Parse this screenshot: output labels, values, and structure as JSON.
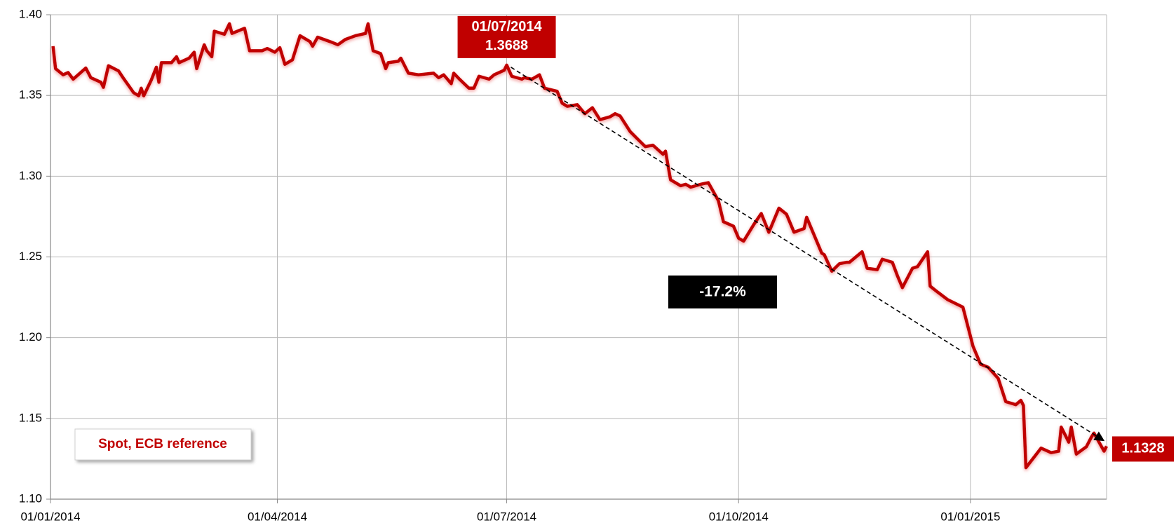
{
  "chart_data": {
    "type": "line",
    "x": [
      "2014-01-02",
      "2014-01-03",
      "2014-01-06",
      "2014-01-08",
      "2014-01-10",
      "2014-01-15",
      "2014-01-17",
      "2014-01-21",
      "2014-01-22",
      "2014-01-24",
      "2014-01-28",
      "2014-01-30",
      "2014-02-03",
      "2014-02-05",
      "2014-02-06",
      "2014-02-07",
      "2014-02-10",
      "2014-02-12",
      "2014-02-13",
      "2014-02-14",
      "2014-02-18",
      "2014-02-20",
      "2014-02-21",
      "2014-02-25",
      "2014-02-27",
      "2014-02-28",
      "2014-03-03",
      "2014-03-04",
      "2014-03-06",
      "2014-03-07",
      "2014-03-11",
      "2014-03-13",
      "2014-03-14",
      "2014-03-19",
      "2014-03-21",
      "2014-03-26",
      "2014-03-28",
      "2014-03-31",
      "2014-04-02",
      "2014-04-04",
      "2014-04-07",
      "2014-04-10",
      "2014-04-14",
      "2014-04-15",
      "2014-04-17",
      "2014-04-22",
      "2014-04-25",
      "2014-04-28",
      "2014-05-02",
      "2014-05-06",
      "2014-05-07",
      "2014-05-09",
      "2014-05-12",
      "2014-05-14",
      "2014-05-15",
      "2014-05-19",
      "2014-05-20",
      "2014-05-23",
      "2014-05-27",
      "2014-06-02",
      "2014-06-04",
      "2014-06-06",
      "2014-06-09",
      "2014-06-10",
      "2014-06-12",
      "2014-06-16",
      "2014-06-18",
      "2014-06-20",
      "2014-06-24",
      "2014-06-26",
      "2014-06-30",
      "2014-07-01",
      "2014-07-03",
      "2014-07-07",
      "2014-07-08",
      "2014-07-11",
      "2014-07-14",
      "2014-07-16",
      "2014-07-21",
      "2014-07-23",
      "2014-07-25",
      "2014-07-29",
      "2014-08-01",
      "2014-08-04",
      "2014-08-07",
      "2014-08-11",
      "2014-08-13",
      "2014-08-15",
      "2014-08-19",
      "2014-08-22",
      "2014-08-25",
      "2014-08-28",
      "2014-09-01",
      "2014-09-02",
      "2014-09-04",
      "2014-09-08",
      "2014-09-10",
      "2014-09-12",
      "2014-09-16",
      "2014-09-19",
      "2014-09-22",
      "2014-09-23",
      "2014-09-25",
      "2014-09-29",
      "2014-10-01",
      "2014-10-03",
      "2014-10-07",
      "2014-10-10",
      "2014-10-13",
      "2014-10-14",
      "2014-10-17",
      "2014-10-20",
      "2014-10-23",
      "2014-10-27",
      "2014-10-28",
      "2014-11-03",
      "2014-11-04",
      "2014-11-07",
      "2014-11-10",
      "2014-11-13",
      "2014-11-14",
      "2014-11-19",
      "2014-11-21",
      "2014-11-25",
      "2014-11-27",
      "2014-12-01",
      "2014-12-03",
      "2014-12-05",
      "2014-12-09",
      "2014-12-11",
      "2014-12-15",
      "2014-12-16",
      "2014-12-19",
      "2014-12-23",
      "2014-12-29",
      "2015-01-02",
      "2015-01-05",
      "2015-01-08",
      "2015-01-12",
      "2015-01-15",
      "2015-01-19",
      "2015-01-21",
      "2015-01-22",
      "2015-01-23",
      "2015-01-29",
      "2015-02-02",
      "2015-02-05",
      "2015-02-06",
      "2015-02-09",
      "2015-02-10",
      "2015-02-12",
      "2015-02-16",
      "2015-02-18",
      "2015-02-19",
      "2015-02-23",
      "2015-02-24"
    ],
    "series": [
      {
        "name": "Spot, ECB reference",
        "color": "#c00000",
        "values": [
          1.3805,
          1.3666,
          1.3628,
          1.3642,
          1.3601,
          1.367,
          1.361,
          1.3582,
          1.355,
          1.3684,
          1.3652,
          1.3605,
          1.3517,
          1.3498,
          1.3545,
          1.3498,
          1.3596,
          1.3675,
          1.3582,
          1.3703,
          1.3703,
          1.374,
          1.3703,
          1.3731,
          1.3768,
          1.3666,
          1.3814,
          1.3777,
          1.374,
          1.3898,
          1.3879,
          1.3944,
          1.3884,
          1.3916,
          1.3777,
          1.3777,
          1.3791,
          1.3768,
          1.3796,
          1.3693,
          1.3721,
          1.387,
          1.3833,
          1.3805,
          1.3861,
          1.3833,
          1.3814,
          1.3847,
          1.387,
          1.3884,
          1.3944,
          1.3777,
          1.3759,
          1.3666,
          1.3703,
          1.3712,
          1.3731,
          1.3638,
          1.3628,
          1.3638,
          1.361,
          1.3628,
          1.3573,
          1.3638,
          1.3605,
          1.3545,
          1.3545,
          1.3619,
          1.3601,
          1.3628,
          1.3656,
          1.3688,
          1.3619,
          1.3601,
          1.361,
          1.3601,
          1.3628,
          1.3545,
          1.3526,
          1.3452,
          1.3433,
          1.3443,
          1.3387,
          1.3424,
          1.335,
          1.3368,
          1.3387,
          1.3373,
          1.3276,
          1.3229,
          1.3183,
          1.3192,
          1.3136,
          1.3155,
          1.2978,
          1.2941,
          1.295,
          1.2932,
          1.295,
          1.296,
          1.2876,
          1.2848,
          1.2718,
          1.269,
          1.2616,
          1.2598,
          1.27,
          1.2769,
          1.2653,
          1.269,
          1.2802,
          1.2765,
          1.2653,
          1.2676,
          1.2746,
          1.2523,
          1.2514,
          1.2412,
          1.2458,
          1.2467,
          1.2467,
          1.2532,
          1.243,
          1.2421,
          1.2486,
          1.2467,
          1.2384,
          1.231,
          1.243,
          1.244,
          1.2532,
          1.2319,
          1.2282,
          1.2235,
          1.2189,
          1.1947,
          1.1836,
          1.1817,
          1.1748,
          1.1604,
          1.1585,
          1.1612,
          1.158,
          1.1195,
          1.1316,
          1.1288,
          1.1297,
          1.1446,
          1.1353,
          1.1446,
          1.1279,
          1.1325,
          1.1385,
          1.1409,
          1.1297,
          1.1328
        ]
      }
    ],
    "xlim": [
      "2014-01-01",
      "2015-02-24"
    ],
    "xticks": [
      {
        "value": "2014-01-01",
        "label": "01/01/2014"
      },
      {
        "value": "2014-04-01",
        "label": "01/04/2014"
      },
      {
        "value": "2014-07-01",
        "label": "01/07/2014"
      },
      {
        "value": "2014-10-01",
        "label": "01/10/2014"
      },
      {
        "value": "2015-01-01",
        "label": "01/01/2015"
      }
    ],
    "ylim": [
      1.1,
      1.4
    ],
    "yticks": [
      {
        "value": 1.1,
        "label": "1.10"
      },
      1.15,
      {
        "value": 1.2,
        "label": "1.20"
      },
      1.25,
      {
        "value": 1.3,
        "label": "1.30"
      },
      1.35,
      {
        "value": 1.4,
        "label": "1.40"
      }
    ],
    "grid": true,
    "legend": "lower left",
    "annotations": [
      {
        "x": "2014-07-01",
        "label": "01/07/2014",
        "value": 1.3688
      },
      {
        "x": "2015-02-24",
        "value": 1.1328
      }
    ],
    "change_label": "-17.2%"
  }
}
